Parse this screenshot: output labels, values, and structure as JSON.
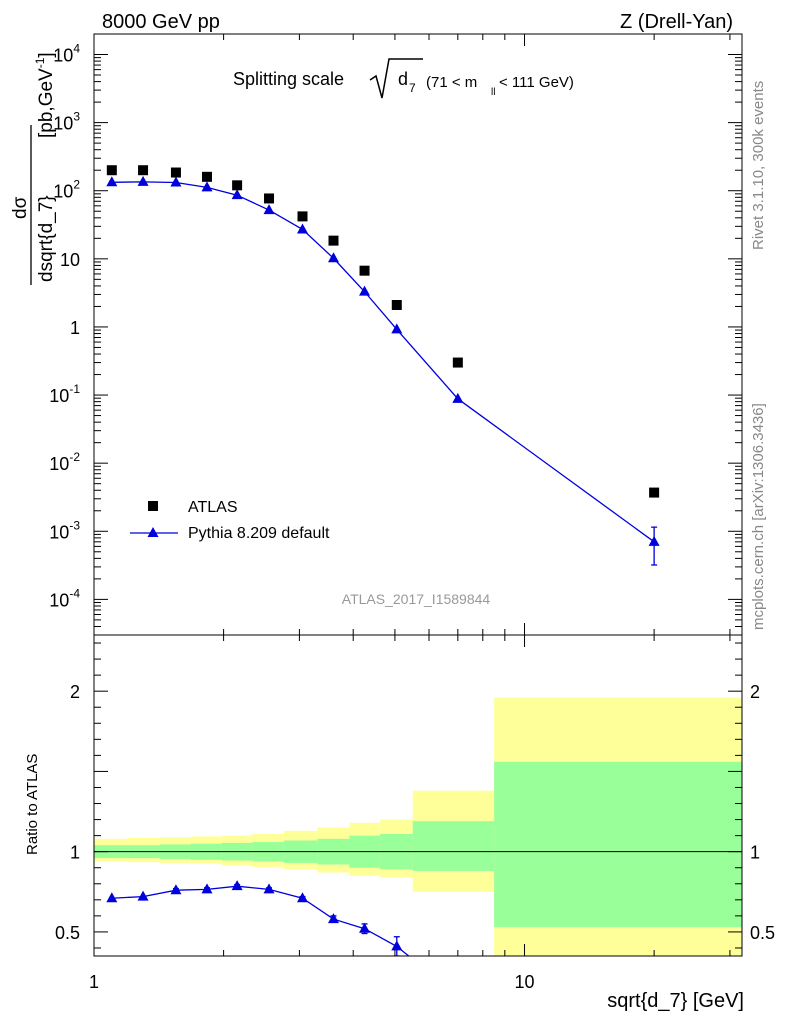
{
  "header": {
    "left": "8000 GeV pp",
    "right": "Z (Drell-Yan)"
  },
  "side": {
    "rivet": "Rivet 3.1.10,  300k events",
    "mcplots": "mcplots.cern.ch [arXiv:1306.3436]"
  },
  "watermark": "ATLAS_2017_I1589844",
  "title": {
    "text": "Splitting scale",
    "sqrt_arg": "d",
    "sqrt_sub": "7",
    "range_open": "(71 < m",
    "range_sub": "ll",
    "range_close": " < 111 GeV)"
  },
  "chart_data": [
    {
      "type": "scatter",
      "panel": "main",
      "xscale": "log",
      "yscale": "log",
      "xlim": [
        1,
        32
      ],
      "ylim": [
        3e-05,
        20000
      ],
      "xlabel": "sqrt{d_7} [GeV]",
      "ylabel": {
        "num": "dσ",
        "den": "dsqrt{d_7}",
        "unit": "[pb,GeV",
        "sup": "-1",
        "close": "]"
      },
      "yticks": [
        {
          "v": 0.0001,
          "base": "10",
          "exp": "-4"
        },
        {
          "v": 0.001,
          "base": "10",
          "exp": "-3"
        },
        {
          "v": 0.01,
          "base": "10",
          "exp": "-2"
        },
        {
          "v": 0.1,
          "base": "10",
          "exp": "-1"
        },
        {
          "v": 1,
          "base": "1",
          "exp": ""
        },
        {
          "v": 10,
          "base": "10",
          "exp": ""
        },
        {
          "v": 100,
          "base": "10",
          "exp": "2"
        },
        {
          "v": 1000,
          "base": "10",
          "exp": "3"
        },
        {
          "v": 10000,
          "base": "10",
          "exp": "4"
        }
      ],
      "legend_position": "lower-left",
      "series": [
        {
          "name": "ATLAS",
          "marker": "square",
          "color": "#000000",
          "x": [
            1.1,
            1.3,
            1.55,
            1.83,
            2.15,
            2.55,
            3.05,
            3.6,
            4.25,
            5.05,
            7.0,
            20.0
          ],
          "y": [
            200,
            200,
            185,
            160,
            120,
            77,
            42,
            18.5,
            6.7,
            2.1,
            0.3,
            0.0037
          ]
        },
        {
          "name": "Pythia 8.209 default",
          "marker": "triangle",
          "color": "#0000dd",
          "x": [
            1.1,
            1.3,
            1.55,
            1.83,
            2.15,
            2.55,
            3.05,
            3.6,
            4.25,
            5.05,
            7.0,
            20.0
          ],
          "y": [
            133,
            135,
            132,
            112,
            86,
            52,
            27,
            10.2,
            3.3,
            0.92,
            0.088,
            0.0007
          ],
          "err_lo": [
            0,
            0,
            0,
            0,
            0,
            0,
            0,
            0,
            0,
            0,
            0,
            0.00038
          ],
          "err_hi": [
            0,
            0,
            0,
            0,
            0,
            0,
            0,
            0,
            0,
            0,
            0,
            0.00045
          ]
        }
      ]
    },
    {
      "type": "line",
      "panel": "ratio",
      "xscale": "log",
      "xlim": [
        1,
        32
      ],
      "ylim": [
        0.35,
        2.35
      ],
      "ylabel": "Ratio to ATLAS",
      "xticks": [
        {
          "v": 1,
          "label": "1"
        },
        {
          "v": 10,
          "label": "10"
        }
      ],
      "yticks": [
        {
          "v": 0.5,
          "label": "0.5"
        },
        {
          "v": 1,
          "label": "1"
        },
        {
          "v": 2,
          "label": "2"
        }
      ],
      "bands": {
        "edges": [
          1,
          1.2,
          1.42,
          1.68,
          1.98,
          2.33,
          2.76,
          3.3,
          3.92,
          4.62,
          5.5,
          8.5,
          32
        ],
        "stat_color": "#99ff99",
        "total_color": "#ffff99",
        "stat_lo": [
          0.96,
          0.96,
          0.955,
          0.95,
          0.945,
          0.94,
          0.93,
          0.92,
          0.9,
          0.89,
          0.88,
          0.53
        ],
        "stat_hi": [
          1.04,
          1.04,
          1.045,
          1.05,
          1.055,
          1.06,
          1.07,
          1.08,
          1.1,
          1.11,
          1.19,
          1.56
        ],
        "total_lo": [
          0.94,
          0.935,
          0.93,
          0.925,
          0.915,
          0.905,
          0.89,
          0.87,
          0.85,
          0.84,
          0.75,
          0.35
        ],
        "total_hi": [
          1.08,
          1.085,
          1.09,
          1.095,
          1.1,
          1.11,
          1.13,
          1.15,
          1.18,
          1.2,
          1.38,
          1.96
        ]
      },
      "series": [
        {
          "name": "Pythia 8.209 default",
          "color": "#0000dd",
          "x": [
            1.1,
            1.3,
            1.55,
            1.83,
            2.15,
            2.55,
            3.05,
            3.6,
            4.25,
            5.05
          ],
          "y": [
            0.71,
            0.72,
            0.76,
            0.765,
            0.785,
            0.765,
            0.71,
            0.58,
            0.52,
            0.41
          ],
          "err": [
            0,
            0,
            0.01,
            0.01,
            0.01,
            0.01,
            0.01,
            0.02,
            0.03,
            0.06
          ]
        }
      ]
    }
  ]
}
